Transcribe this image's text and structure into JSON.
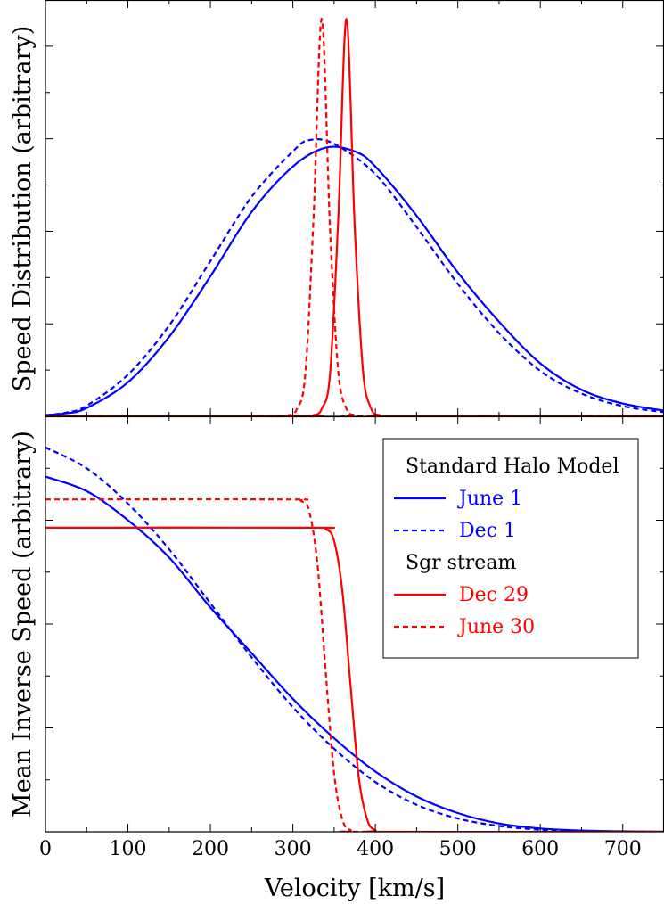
{
  "chart_data": [
    {
      "type": "line",
      "panel": "top",
      "ylabel": "Speed Distribution (arbitrary)",
      "xlim": [
        0,
        750
      ],
      "ylim": [
        0,
        1.1
      ],
      "series": [
        {
          "name": "June 1",
          "group": "Standard Halo Model",
          "color": "#0000ff",
          "dash": "solid",
          "x": [
            0,
            25,
            50,
            100,
            150,
            200,
            250,
            300,
            340,
            375,
            400,
            450,
            500,
            550,
            600,
            650,
            700,
            750
          ],
          "y": [
            0.003,
            0.008,
            0.022,
            0.09,
            0.21,
            0.37,
            0.54,
            0.66,
            0.71,
            0.7,
            0.66,
            0.53,
            0.38,
            0.25,
            0.14,
            0.07,
            0.034,
            0.015
          ]
        },
        {
          "name": "Dec 1",
          "group": "Standard Halo Model",
          "color": "#0000ff",
          "dash": "dashed",
          "x": [
            0,
            25,
            50,
            100,
            150,
            200,
            250,
            300,
            320,
            350,
            400,
            450,
            500,
            550,
            600,
            650,
            700,
            750
          ],
          "y": [
            0.003,
            0.01,
            0.028,
            0.11,
            0.24,
            0.41,
            0.58,
            0.7,
            0.73,
            0.72,
            0.64,
            0.5,
            0.35,
            0.22,
            0.12,
            0.06,
            0.027,
            0.011
          ]
        },
        {
          "name": "Dec 29",
          "group": "Sgr stream",
          "color": "#ff0000",
          "dash": "solid",
          "x": [
            0,
            310,
            325,
            335,
            345,
            355,
            365,
            375,
            385,
            395,
            405,
            420,
            750
          ],
          "y": [
            0,
            0,
            0.003,
            0.02,
            0.11,
            0.52,
            1.05,
            0.5,
            0.12,
            0.02,
            0.003,
            0,
            0
          ]
        },
        {
          "name": "June 30",
          "group": "Sgr stream",
          "color": "#ff0000",
          "dash": "dashed",
          "x": [
            0,
            280,
            295,
            305,
            315,
            325,
            335,
            345,
            355,
            365,
            375,
            390,
            750
          ],
          "y": [
            0,
            0,
            0.003,
            0.02,
            0.11,
            0.52,
            1.05,
            0.5,
            0.12,
            0.02,
            0.003,
            0,
            0
          ]
        }
      ]
    },
    {
      "type": "line",
      "panel": "bottom",
      "xlabel": "Velocity [km/s]",
      "ylabel": "Mean Inverse Speed (arbitrary)",
      "xlim": [
        0,
        750
      ],
      "ylim": [
        0,
        1.0
      ],
      "x_ticks": [
        0,
        100,
        200,
        300,
        400,
        500,
        600,
        700
      ],
      "series": [
        {
          "name": "June 1",
          "group": "Standard Halo Model",
          "color": "#0000ff",
          "dash": "solid",
          "x": [
            0,
            50,
            100,
            150,
            200,
            250,
            300,
            350,
            400,
            450,
            500,
            550,
            600,
            650,
            700,
            750
          ],
          "y": [
            0.855,
            0.82,
            0.75,
            0.66,
            0.54,
            0.43,
            0.32,
            0.225,
            0.145,
            0.085,
            0.045,
            0.02,
            0.008,
            0.003,
            0.001,
            0
          ]
        },
        {
          "name": "Dec 1",
          "group": "Standard Halo Model",
          "color": "#0000ff",
          "dash": "dashed",
          "x": [
            0,
            50,
            100,
            150,
            200,
            250,
            300,
            350,
            400,
            450,
            500,
            550,
            600,
            650,
            700,
            750
          ],
          "y": [
            0.925,
            0.875,
            0.79,
            0.68,
            0.55,
            0.42,
            0.3,
            0.2,
            0.12,
            0.065,
            0.032,
            0.014,
            0.005,
            0.002,
            0.0005,
            0
          ]
        },
        {
          "name": "Dec 29",
          "group": "Sgr stream",
          "color": "#ff0000",
          "dash": "solid",
          "x": [
            0,
            320,
            340,
            350,
            360,
            370,
            380,
            390,
            400,
            420,
            750
          ],
          "y": [
            0.732,
            0.732,
            0.728,
            0.7,
            0.58,
            0.35,
            0.13,
            0.03,
            0.004,
            0,
            0
          ]
        },
        {
          "name": "June 30",
          "group": "Sgr stream",
          "color": "#ff0000",
          "dash": "dashed",
          "x": [
            0,
            290,
            310,
            320,
            330,
            340,
            350,
            360,
            370,
            390,
            750
          ],
          "y": [
            0.8,
            0.8,
            0.796,
            0.77,
            0.64,
            0.38,
            0.14,
            0.03,
            0.004,
            0,
            0
          ]
        }
      ]
    }
  ],
  "legend": {
    "placement": "upper-right of bottom panel",
    "groups": [
      {
        "title": "Standard Halo Model",
        "entries": [
          "June 1",
          "Dec 1"
        ]
      },
      {
        "title": "Sgr stream",
        "entries": [
          "Dec 29",
          "June 30"
        ]
      }
    ]
  }
}
